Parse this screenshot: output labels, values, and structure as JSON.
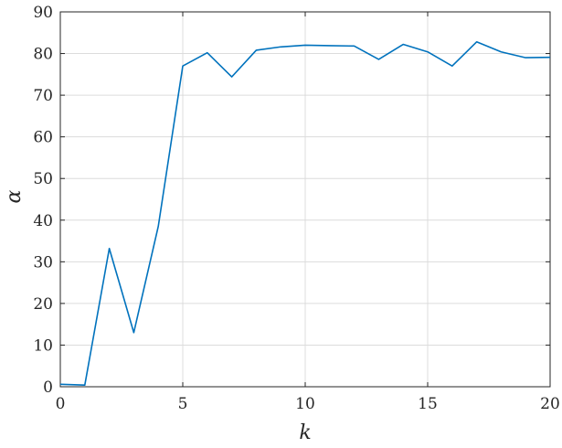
{
  "chart_data": {
    "type": "line",
    "title": "",
    "xlabel": "k",
    "ylabel": "α",
    "xlim": [
      0,
      20
    ],
    "ylim": [
      0,
      90
    ],
    "xticks": [
      0,
      5,
      10,
      15,
      20
    ],
    "yticks": [
      0,
      10,
      20,
      30,
      40,
      50,
      60,
      70,
      80,
      90
    ],
    "grid": true,
    "series": [
      {
        "color": "#0072BD",
        "x": [
          0,
          1,
          2,
          3,
          4,
          5,
          6,
          7,
          8,
          9,
          10,
          11,
          12,
          13,
          14,
          15,
          16,
          17,
          18,
          19,
          20
        ],
        "y": [
          0.6,
          0.4,
          33.2,
          13.0,
          38.5,
          77.0,
          80.2,
          74.4,
          80.8,
          81.6,
          82.0,
          81.9,
          81.8,
          78.6,
          82.2,
          80.4,
          77.0,
          82.8,
          80.4,
          79.0,
          79.1
        ]
      }
    ]
  }
}
